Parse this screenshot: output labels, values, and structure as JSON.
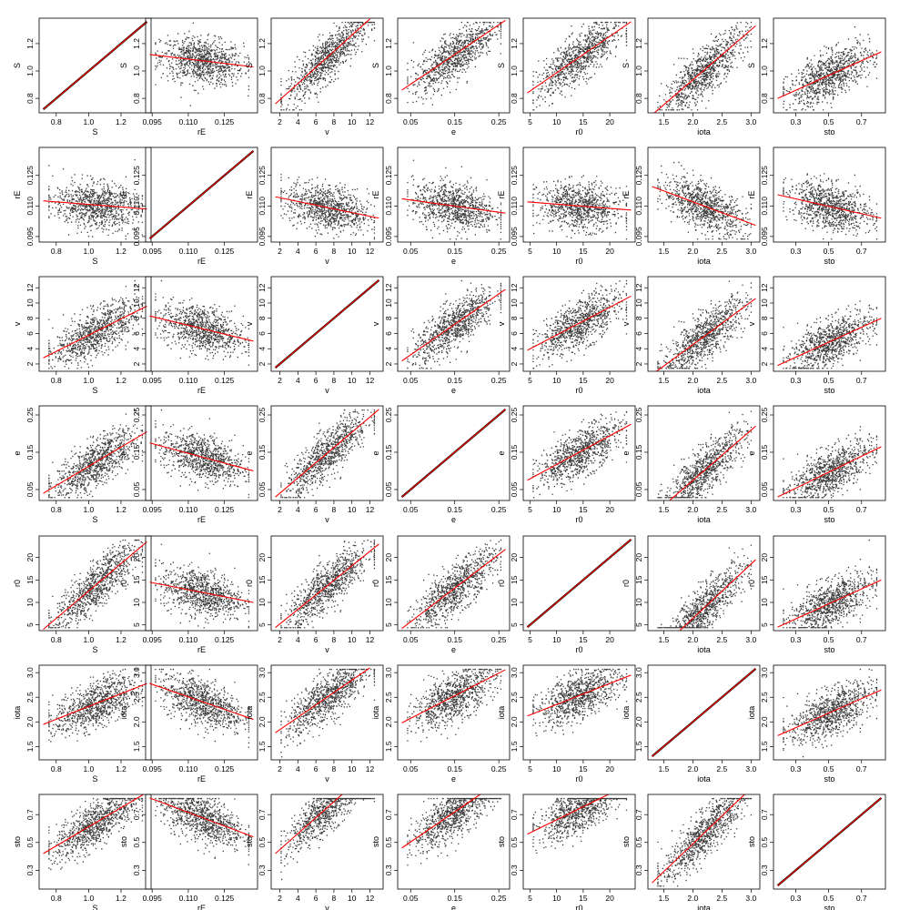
{
  "chart_data": {
    "type": "scatter",
    "layout": "scatterplot-matrix",
    "grid": false,
    "point_color": "#1a1a1a",
    "fit_line_color": "#ff0000",
    "variables": [
      {
        "name": "S",
        "range": [
          0.72,
          1.36
        ],
        "ticks": [
          "0.8",
          "1.0",
          "1.2"
        ],
        "ytick_labels": [
          "0.8",
          "1.0",
          "1.2"
        ]
      },
      {
        "name": "rE",
        "range": [
          0.094,
          0.137
        ],
        "ticks": [
          "0.095",
          "0.110",
          "0.125"
        ],
        "ytick_labels": [
          "0.095",
          "0.110",
          "0.125"
        ]
      },
      {
        "name": "v",
        "range": [
          1.5,
          13
        ],
        "ticks": [
          "2",
          "4",
          "6",
          "8",
          "10",
          "12"
        ],
        "ytick_labels": [
          "2",
          "4",
          "6",
          "8",
          "10",
          "12"
        ]
      },
      {
        "name": "e",
        "range": [
          0.03,
          0.265
        ],
        "ticks": [
          "0.05",
          "0.15",
          "0.25"
        ],
        "ytick_labels": [
          "0.05",
          "0.15",
          "0.25"
        ]
      },
      {
        "name": "r0",
        "range": [
          4.5,
          24
        ],
        "ticks": [
          "5",
          "10",
          "15",
          "20"
        ],
        "ytick_labels": [
          "5",
          "10",
          "15",
          "20"
        ]
      },
      {
        "name": "iota",
        "range": [
          1.3,
          3.08
        ],
        "ticks": [
          "1.5",
          "2.0",
          "2.5",
          "3.0"
        ],
        "ytick_labels": [
          "1.5",
          "2.0",
          "2.5",
          "3.0"
        ]
      },
      {
        "name": "sto",
        "range": [
          0.19,
          0.82
        ],
        "ticks": [
          "0.3",
          "0.5",
          "0.7"
        ],
        "ytick_labels": [
          "0.3",
          "0.5",
          "0.7"
        ]
      }
    ],
    "panels": [
      {
        "row": 0,
        "col": 0,
        "x": "S",
        "y": "S",
        "diagonal": true,
        "line": [
          [
            0.72,
            0.72
          ],
          [
            1.36,
            1.36
          ]
        ]
      },
      {
        "row": 0,
        "col": 1,
        "x": "rE",
        "y": "S",
        "line": [
          [
            0.094,
            1.12
          ],
          [
            0.137,
            1.03
          ]
        ]
      },
      {
        "row": 0,
        "col": 2,
        "x": "v",
        "y": "S",
        "line": [
          [
            1.5,
            0.76
          ],
          [
            12,
            1.38
          ]
        ]
      },
      {
        "row": 0,
        "col": 3,
        "x": "e",
        "y": "S",
        "line": [
          [
            0.03,
            0.86
          ],
          [
            0.265,
            1.37
          ]
        ]
      },
      {
        "row": 0,
        "col": 4,
        "x": "r0",
        "y": "S",
        "line": [
          [
            4.5,
            0.84
          ],
          [
            24,
            1.36
          ]
        ]
      },
      {
        "row": 0,
        "col": 5,
        "x": "iota",
        "y": "S",
        "line": [
          [
            1.3,
            0.68
          ],
          [
            3.08,
            1.33
          ]
        ]
      },
      {
        "row": 0,
        "col": 6,
        "x": "sto",
        "y": "S",
        "line": [
          [
            0.19,
            0.8
          ],
          [
            0.82,
            1.14
          ]
        ]
      },
      {
        "row": 1,
        "col": 0,
        "x": "S",
        "y": "rE",
        "line": [
          [
            0.72,
            0.1125
          ],
          [
            1.36,
            0.1085
          ]
        ]
      },
      {
        "row": 1,
        "col": 1,
        "x": "rE",
        "y": "rE",
        "diagonal": true,
        "line": [
          [
            0.094,
            0.094
          ],
          [
            0.137,
            0.137
          ]
        ]
      },
      {
        "row": 1,
        "col": 2,
        "x": "v",
        "y": "rE",
        "line": [
          [
            1.5,
            0.1145
          ],
          [
            13,
            0.104
          ]
        ]
      },
      {
        "row": 1,
        "col": 3,
        "x": "e",
        "y": "rE",
        "line": [
          [
            0.03,
            0.1135
          ],
          [
            0.265,
            0.1065
          ]
        ]
      },
      {
        "row": 1,
        "col": 4,
        "x": "r0",
        "y": "rE",
        "line": [
          [
            4.5,
            0.112
          ],
          [
            24,
            0.108
          ]
        ]
      },
      {
        "row": 1,
        "col": 5,
        "x": "iota",
        "y": "rE",
        "line": [
          [
            1.3,
            0.1195
          ],
          [
            3.08,
            0.1005
          ]
        ]
      },
      {
        "row": 1,
        "col": 6,
        "x": "sto",
        "y": "rE",
        "line": [
          [
            0.19,
            0.1155
          ],
          [
            0.82,
            0.104
          ]
        ]
      },
      {
        "row": 2,
        "col": 0,
        "x": "S",
        "y": "v",
        "line": [
          [
            0.72,
            2.8
          ],
          [
            1.36,
            9.6
          ]
        ]
      },
      {
        "row": 2,
        "col": 1,
        "x": "rE",
        "y": "v",
        "line": [
          [
            0.094,
            8.3
          ],
          [
            0.137,
            5.0
          ]
        ]
      },
      {
        "row": 2,
        "col": 2,
        "x": "v",
        "y": "v",
        "diagonal": true,
        "line": [
          [
            1.5,
            1.5
          ],
          [
            13,
            13
          ]
        ]
      },
      {
        "row": 2,
        "col": 3,
        "x": "e",
        "y": "v",
        "line": [
          [
            0.03,
            2.4
          ],
          [
            0.265,
            11.8
          ]
        ]
      },
      {
        "row": 2,
        "col": 4,
        "x": "r0",
        "y": "v",
        "line": [
          [
            4.5,
            3.8
          ],
          [
            24,
            10.9
          ]
        ]
      },
      {
        "row": 2,
        "col": 5,
        "x": "iota",
        "y": "v",
        "line": [
          [
            1.3,
            0.6
          ],
          [
            3.08,
            10.6
          ]
        ]
      },
      {
        "row": 2,
        "col": 6,
        "x": "sto",
        "y": "v",
        "line": [
          [
            0.19,
            1.8
          ],
          [
            0.82,
            8.0
          ]
        ]
      },
      {
        "row": 3,
        "col": 0,
        "x": "S",
        "y": "e",
        "line": [
          [
            0.72,
            0.04
          ],
          [
            1.36,
            0.205
          ]
        ]
      },
      {
        "row": 3,
        "col": 1,
        "x": "rE",
        "y": "e",
        "line": [
          [
            0.094,
            0.175
          ],
          [
            0.137,
            0.1
          ]
        ]
      },
      {
        "row": 3,
        "col": 2,
        "x": "v",
        "y": "e",
        "line": [
          [
            1.5,
            0.03
          ],
          [
            13,
            0.265
          ]
        ]
      },
      {
        "row": 3,
        "col": 3,
        "x": "e",
        "y": "e",
        "diagonal": true,
        "line": [
          [
            0.03,
            0.03
          ],
          [
            0.265,
            0.265
          ]
        ]
      },
      {
        "row": 3,
        "col": 4,
        "x": "r0",
        "y": "e",
        "line": [
          [
            4.5,
            0.075
          ],
          [
            24,
            0.225
          ]
        ]
      },
      {
        "row": 3,
        "col": 5,
        "x": "iota",
        "y": "e",
        "line": [
          [
            1.3,
            -0.02
          ],
          [
            3.08,
            0.22
          ]
        ]
      },
      {
        "row": 3,
        "col": 6,
        "x": "sto",
        "y": "e",
        "line": [
          [
            0.19,
            0.03
          ],
          [
            0.82,
            0.165
          ]
        ]
      },
      {
        "row": 4,
        "col": 0,
        "x": "S",
        "y": "r0",
        "line": [
          [
            0.72,
            4.0
          ],
          [
            1.36,
            23.5
          ]
        ]
      },
      {
        "row": 4,
        "col": 1,
        "x": "rE",
        "y": "r0",
        "line": [
          [
            0.094,
            14.5
          ],
          [
            0.137,
            10.0
          ]
        ]
      },
      {
        "row": 4,
        "col": 2,
        "x": "v",
        "y": "r0",
        "line": [
          [
            1.5,
            4.4
          ],
          [
            13,
            23.0
          ]
        ]
      },
      {
        "row": 4,
        "col": 3,
        "x": "e",
        "y": "r0",
        "line": [
          [
            0.03,
            4.2
          ],
          [
            0.265,
            21.8
          ]
        ]
      },
      {
        "row": 4,
        "col": 4,
        "x": "r0",
        "y": "r0",
        "diagonal": true,
        "line": [
          [
            4.5,
            4.5
          ],
          [
            24,
            24
          ]
        ]
      },
      {
        "row": 4,
        "col": 5,
        "x": "iota",
        "y": "r0",
        "line": [
          [
            1.3,
            -2.0
          ],
          [
            3.08,
            19.5
          ]
        ]
      },
      {
        "row": 4,
        "col": 6,
        "x": "sto",
        "y": "r0",
        "line": [
          [
            0.19,
            4.5
          ],
          [
            0.82,
            15.0
          ]
        ]
      },
      {
        "row": 5,
        "col": 0,
        "x": "S",
        "y": "iota",
        "line": [
          [
            0.72,
            1.95
          ],
          [
            1.36,
            2.78
          ]
        ]
      },
      {
        "row": 5,
        "col": 1,
        "x": "rE",
        "y": "iota",
        "line": [
          [
            0.094,
            2.78
          ],
          [
            0.137,
            2.05
          ]
        ]
      },
      {
        "row": 5,
        "col": 2,
        "x": "v",
        "y": "iota",
        "line": [
          [
            1.5,
            1.78
          ],
          [
            12,
            3.1
          ]
        ]
      },
      {
        "row": 5,
        "col": 3,
        "x": "e",
        "y": "iota",
        "line": [
          [
            0.03,
            1.98
          ],
          [
            0.265,
            3.06
          ]
        ]
      },
      {
        "row": 5,
        "col": 4,
        "x": "r0",
        "y": "iota",
        "line": [
          [
            4.5,
            2.12
          ],
          [
            24,
            2.95
          ]
        ]
      },
      {
        "row": 5,
        "col": 5,
        "x": "iota",
        "y": "iota",
        "diagonal": true,
        "line": [
          [
            1.3,
            1.3
          ],
          [
            3.08,
            3.08
          ]
        ]
      },
      {
        "row": 5,
        "col": 6,
        "x": "sto",
        "y": "iota",
        "line": [
          [
            0.19,
            1.72
          ],
          [
            0.82,
            2.65
          ]
        ]
      },
      {
        "row": 6,
        "col": 0,
        "x": "S",
        "y": "sto",
        "line": [
          [
            0.72,
            0.42
          ],
          [
            1.36,
            0.86
          ]
        ]
      },
      {
        "row": 6,
        "col": 1,
        "x": "rE",
        "y": "sto",
        "line": [
          [
            0.094,
            0.82
          ],
          [
            0.137,
            0.54
          ]
        ]
      },
      {
        "row": 6,
        "col": 2,
        "x": "v",
        "y": "sto",
        "line": [
          [
            1.5,
            0.42
          ],
          [
            9.0,
            0.85
          ]
        ]
      },
      {
        "row": 6,
        "col": 3,
        "x": "e",
        "y": "sto",
        "line": [
          [
            0.03,
            0.46
          ],
          [
            0.21,
            0.85
          ]
        ]
      },
      {
        "row": 6,
        "col": 4,
        "x": "r0",
        "y": "sto",
        "line": [
          [
            4.5,
            0.56
          ],
          [
            20,
            0.85
          ]
        ]
      },
      {
        "row": 6,
        "col": 5,
        "x": "iota",
        "y": "sto",
        "line": [
          [
            1.3,
            0.21
          ],
          [
            2.9,
            0.85
          ]
        ]
      },
      {
        "row": 6,
        "col": 6,
        "x": "sto",
        "y": "sto",
        "diagonal": true,
        "line": [
          [
            0.19,
            0.19
          ],
          [
            0.82,
            0.82
          ]
        ]
      }
    ]
  }
}
